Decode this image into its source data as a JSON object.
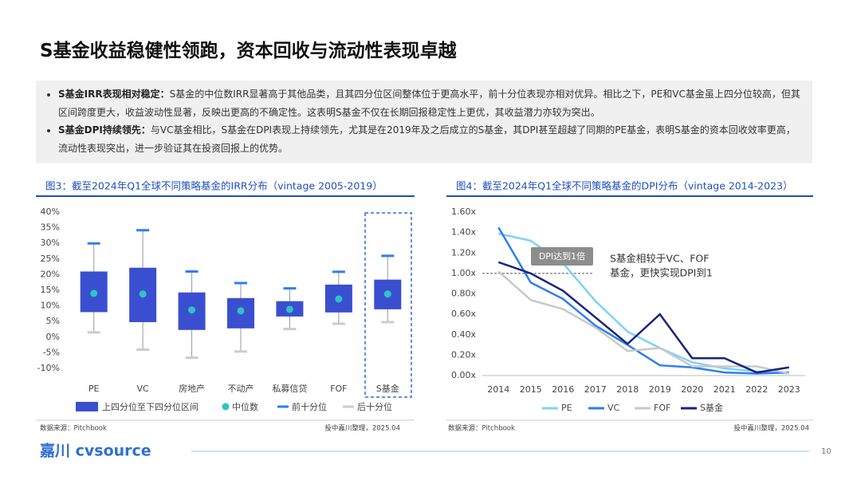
{
  "header": {
    "title": "S基金收益稳健性领跑，资本回收与流动性表现卓越"
  },
  "bullets": [
    {
      "lead": "S基金IRR表现相对稳定：",
      "text": "S基金的中位数IRR显著高于其他品类，且其四分位区间整体位于更高水平，前十分位表现亦相对优异。相比之下，PE和VC基金虽上四分位较高，但其区间跨度更大，收益波动性显著，反映出更高的不确定性。这表明S基金不仅在长期回报稳定性上更优，其收益潜力亦较为突出。"
    },
    {
      "lead": "S基金DPI持续领先：",
      "text": "与VC基金相比，S基金在DPI表现上持续领先，尤其是在2019年及之后成立的S基金，其DPI甚至超越了同期的PE基金，表明S基金的资本回收效率更高，流动性表现突出，进一步验证其在投资回报上的优势。"
    }
  ],
  "chart_data": [
    {
      "type": "box",
      "title": "图3：截至2024年Q1全球不同策略基金的IRR分布（vintage 2005-2019）",
      "categories": [
        "PE",
        "VC",
        "房地产",
        "不动产",
        "私募信贷",
        "FOF",
        "S基金"
      ],
      "box": {
        "name": "上四分位至下四分位区间",
        "color": "#3a4fd0",
        "q3": [
          21,
          22.2,
          14.3,
          12.5,
          11.5,
          16.8,
          18.4
        ],
        "q1": [
          8,
          4.8,
          2.3,
          2.8,
          6.6,
          7.9,
          8.9
        ]
      },
      "median": {
        "name": "中位数",
        "color": "#2ec4c4",
        "values": [
          14,
          13.8,
          8.7,
          8.4,
          8.9,
          12.2,
          13.8
        ]
      },
      "top_decile": {
        "name": "前十分位",
        "color": "#2f7ef0",
        "values": [
          30,
          34.2,
          21,
          17.3,
          15.6,
          20.9,
          26
        ]
      },
      "bottom_decile": {
        "name": "后十分位",
        "color": "#cccccc",
        "values": [
          1.5,
          -4,
          -6.6,
          -4.6,
          2.6,
          4.3,
          4.8
        ]
      },
      "ylim": [
        -10,
        40
      ],
      "yticks": [
        {
          "value": -10,
          "label": "-10%"
        },
        {
          "value": -5,
          "label": "-5%"
        },
        {
          "value": 0,
          "label": "0%"
        },
        {
          "value": 5,
          "label": "5%"
        },
        {
          "value": 10,
          "label": "10%"
        },
        {
          "value": 15,
          "label": "15%"
        },
        {
          "value": 20,
          "label": "20%"
        },
        {
          "value": 25,
          "label": "25%"
        },
        {
          "value": 30,
          "label": "30%"
        },
        {
          "value": 35,
          "label": "35%"
        },
        {
          "value": 40,
          "label": "40%"
        }
      ],
      "source": "数据来源：Pitchbook",
      "credit": "投中嘉川整理，2025.04"
    },
    {
      "type": "line",
      "title": "图4：截至2024年Q1全球不同策略基金的DPI分布（vintage 2014-2023）",
      "categories": [
        "2014",
        "2015",
        "2016",
        "2017",
        "2018",
        "2019",
        "2020",
        "2021",
        "2022",
        "2023"
      ],
      "series": [
        {
          "name": "PE",
          "color": "#7dd3f5",
          "values": [
            1.39,
            1.32,
            1.1,
            0.73,
            0.43,
            0.27,
            0.13,
            0.07,
            0.04,
            0.02
          ]
        },
        {
          "name": "VC",
          "color": "#2f7ef0",
          "values": [
            1.45,
            0.91,
            0.75,
            0.49,
            0.3,
            0.1,
            0.08,
            0.03,
            0.02,
            0.03
          ]
        },
        {
          "name": "FOF",
          "color": "#c8c8c8",
          "values": [
            1.02,
            0.74,
            0.65,
            0.47,
            0.24,
            0.27,
            0.09,
            0.09,
            0.09,
            0.02
          ]
        },
        {
          "name": "S基金",
          "color": "#1a237e",
          "values": [
            1.11,
            1.0,
            0.83,
            0.57,
            0.31,
            0.6,
            0.17,
            0.17,
            0.03,
            0.08
          ]
        }
      ],
      "ylim": [
        0,
        1.6
      ],
      "yticks": [
        {
          "value": 0,
          "label": "0.00x"
        },
        {
          "value": 0.2,
          "label": "0.20x"
        },
        {
          "value": 0.4,
          "label": "0.40x"
        },
        {
          "value": 0.6,
          "label": "0.60x"
        },
        {
          "value": 0.8,
          "label": "0.80x"
        },
        {
          "value": 1.0,
          "label": "1.00x"
        },
        {
          "value": 1.2,
          "label": "1.20x"
        },
        {
          "value": 1.4,
          "label": "1.40x"
        },
        {
          "value": 1.6,
          "label": "1.60x"
        }
      ],
      "reference_line": 1,
      "reference_label": "DPI达到1倍",
      "annotation": [
        "S基金相较于VC、FOF",
        "基金，更快实现DPI到1"
      ],
      "source": "数据来源：Pitchbook",
      "credit": "投中嘉川整理，2025.04"
    }
  ],
  "footer": {
    "logo": "嘉川 cvsource",
    "page": 10
  }
}
